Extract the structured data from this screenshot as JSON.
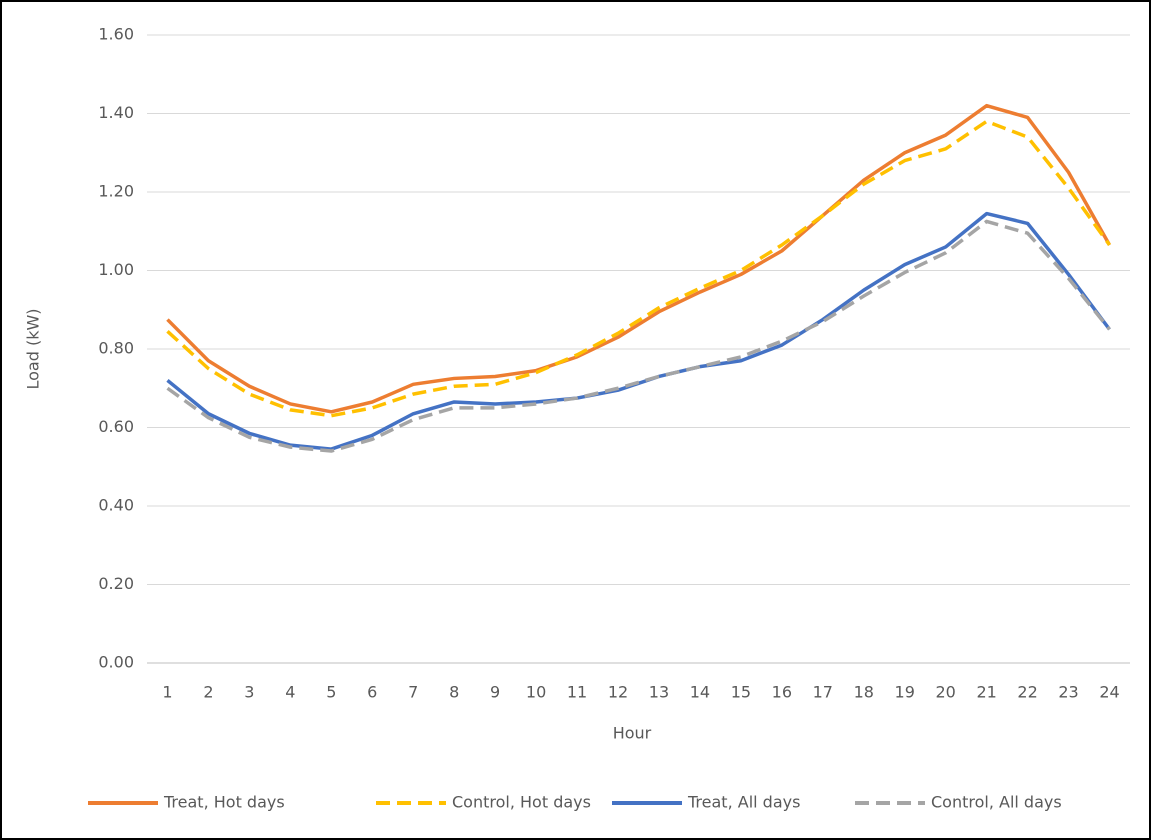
{
  "chart_data": {
    "type": "line",
    "x_label": "Hour",
    "y_label": "Load (kW)",
    "categories": [
      1,
      2,
      3,
      4,
      5,
      6,
      7,
      8,
      9,
      10,
      11,
      12,
      13,
      14,
      15,
      16,
      17,
      18,
      19,
      20,
      21,
      22,
      23,
      24
    ],
    "series": [
      {
        "name": "Treat, Hot days",
        "color": "#ed7d31",
        "dashed": false,
        "values": [
          0.875,
          0.77,
          0.705,
          0.66,
          0.64,
          0.665,
          0.71,
          0.725,
          0.73,
          0.745,
          0.78,
          0.83,
          0.895,
          0.945,
          0.99,
          1.05,
          1.14,
          1.23,
          1.3,
          1.345,
          1.42,
          1.39,
          1.25,
          1.065
        ]
      },
      {
        "name": "Control, Hot days",
        "color": "#ffc000",
        "dashed": true,
        "values": [
          0.845,
          0.75,
          0.685,
          0.645,
          0.63,
          0.65,
          0.685,
          0.705,
          0.71,
          0.74,
          0.785,
          0.84,
          0.905,
          0.955,
          1.0,
          1.065,
          1.14,
          1.22,
          1.28,
          1.31,
          1.38,
          1.34,
          1.21,
          1.065
        ]
      },
      {
        "name": "Treat, All days",
        "color": "#4472c4",
        "dashed": false,
        "values": [
          0.72,
          0.635,
          0.585,
          0.555,
          0.545,
          0.58,
          0.635,
          0.665,
          0.66,
          0.665,
          0.675,
          0.695,
          0.73,
          0.755,
          0.77,
          0.81,
          0.875,
          0.95,
          1.015,
          1.06,
          1.145,
          1.12,
          0.99,
          0.85
        ]
      },
      {
        "name": "Control, All days",
        "color": "#a5a5a5",
        "dashed": true,
        "values": [
          0.7,
          0.625,
          0.575,
          0.55,
          0.54,
          0.57,
          0.62,
          0.65,
          0.65,
          0.66,
          0.675,
          0.7,
          0.73,
          0.755,
          0.78,
          0.82,
          0.87,
          0.935,
          0.995,
          1.045,
          1.125,
          1.095,
          0.98,
          0.85
        ]
      }
    ],
    "ylim": [
      0,
      1.6
    ],
    "yticks": [
      {
        "value": 0,
        "label": "0.00"
      },
      {
        "value": 0.2,
        "label": "0.20"
      },
      {
        "value": 0.4,
        "label": "0.40"
      },
      {
        "value": 0.6,
        "label": "0.60"
      },
      {
        "value": 0.8,
        "label": "0.80"
      },
      {
        "value": 1.0,
        "label": "1.00"
      },
      {
        "value": 1.2,
        "label": "1.20"
      },
      {
        "value": 1.4,
        "label": "1.40"
      },
      {
        "value": 1.6,
        "label": "1.60"
      }
    ],
    "grid": true,
    "legend": "bottom"
  }
}
